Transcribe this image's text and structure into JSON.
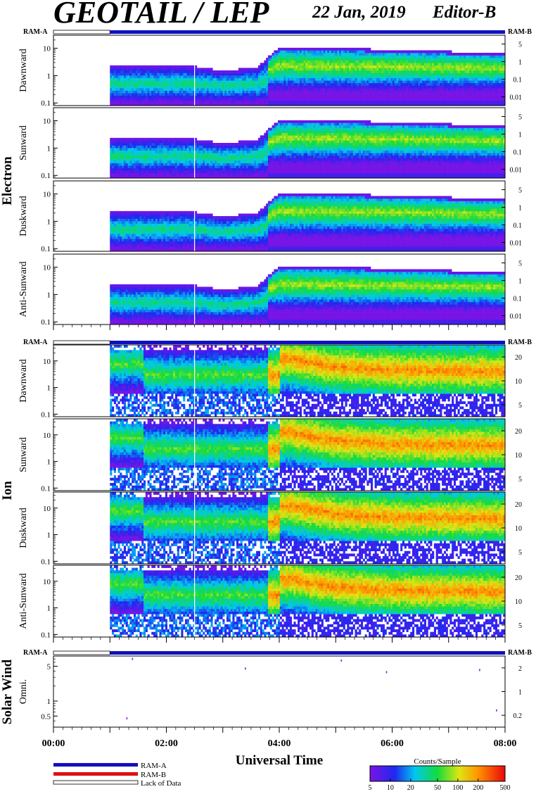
{
  "header": {
    "title": "GEOTAIL / LEP",
    "date": "22 Jan, 2019",
    "editor": "Editor-B"
  },
  "ram_labels": {
    "a": "RAM-A",
    "b": "RAM-B"
  },
  "group_labels": {
    "electron": "Electron",
    "ion": "Ion",
    "solar_wind": "Solar Wind"
  },
  "panel_labels": [
    "Dawnward",
    "Sunward",
    "Duskward",
    "Anti-Sunward",
    "Dawnward",
    "Sunward",
    "Duskward",
    "Anti-Sunward",
    "Omni."
  ],
  "x_axis": {
    "title": "Universal Time",
    "ticks": [
      "00:00",
      "02:00",
      "04:00",
      "06:00",
      "08:00"
    ]
  },
  "legend": {
    "ram_a": "RAM-A",
    "ram_b": "RAM-B",
    "lack": "Lack of Data"
  },
  "colorbar": {
    "title": "Counts/Sample",
    "ticks": [
      "5",
      "10",
      "20",
      "50",
      "100",
      "200",
      "500"
    ]
  },
  "left_tick_labels": {
    "electron": [
      "10",
      "1",
      "0.1"
    ],
    "ion": [
      "10",
      "1",
      "0.1"
    ],
    "solar_wind": [
      "5",
      "1",
      "0.5"
    ]
  },
  "right_tick_labels": {
    "electron": [
      "5",
      "1",
      "0.1",
      "0.01"
    ],
    "ion": [
      "20",
      "10",
      "5"
    ],
    "solar_wind": [
      "2",
      "1",
      "0.2"
    ]
  },
  "colors": {
    "ram_a": "#1010c0",
    "ram_b": "#dd1111",
    "axis": "#000000",
    "background": "#ffffff"
  },
  "chart_data": {
    "type": "heatmap",
    "x_range_hours": [
      0,
      8
    ],
    "data_start_hour": 1.0,
    "ram_b_start_hour": 1.0,
    "colorscale_range": [
      5,
      500
    ],
    "colorscale_log": true,
    "panels": [
      {
        "group": "electron",
        "label": "Dawnward",
        "y_range": [
          0.08,
          30
        ],
        "y_log": true,
        "y_ticks": [
          10,
          1,
          0.1
        ],
        "right_ticks": [
          5,
          1,
          0.1,
          0.01
        ],
        "upper_edge": [
          [
            1.0,
            2.2
          ],
          [
            2.5,
            2.2
          ],
          [
            3.0,
            1.5
          ],
          [
            3.6,
            2.0
          ],
          [
            4.0,
            11
          ],
          [
            5.0,
            10
          ],
          [
            6.0,
            9
          ],
          [
            8.0,
            6.5
          ]
        ]
      },
      {
        "group": "electron",
        "label": "Sunward",
        "y_range": [
          0.08,
          30
        ],
        "y_log": true,
        "y_ticks": [
          10,
          1,
          0.1
        ],
        "right_ticks": [
          5,
          1,
          0.1,
          0.01
        ],
        "upper_edge": [
          [
            1.0,
            2.2
          ],
          [
            2.5,
            2.2
          ],
          [
            3.0,
            1.5
          ],
          [
            3.6,
            2.0
          ],
          [
            4.0,
            11
          ],
          [
            5.0,
            10
          ],
          [
            6.0,
            9
          ],
          [
            8.0,
            6.5
          ]
        ]
      },
      {
        "group": "electron",
        "label": "Duskward",
        "y_range": [
          0.08,
          30
        ],
        "y_log": true,
        "y_ticks": [
          10,
          1,
          0.1
        ],
        "right_ticks": [
          5,
          1,
          0.1,
          0.01
        ],
        "upper_edge": [
          [
            1.0,
            2.2
          ],
          [
            2.5,
            2.2
          ],
          [
            3.0,
            1.5
          ],
          [
            3.6,
            2.0
          ],
          [
            4.0,
            11
          ],
          [
            5.0,
            10
          ],
          [
            6.0,
            9
          ],
          [
            8.0,
            6.5
          ]
        ]
      },
      {
        "group": "electron",
        "label": "Anti-Sunward",
        "y_range": [
          0.08,
          30
        ],
        "y_log": true,
        "y_ticks": [
          10,
          1,
          0.1
        ],
        "right_ticks": [
          5,
          1,
          0.1,
          0.01
        ],
        "upper_edge": [
          [
            1.0,
            2.2
          ],
          [
            2.5,
            2.2
          ],
          [
            3.0,
            1.5
          ],
          [
            3.6,
            2.0
          ],
          [
            4.0,
            11
          ],
          [
            5.0,
            10
          ],
          [
            6.0,
            9
          ],
          [
            8.0,
            6.5
          ]
        ]
      },
      {
        "group": "ion",
        "label": "Dawnward",
        "y_range": [
          0.08,
          40
        ],
        "y_log": true,
        "y_ticks": [
          10,
          1,
          0.1
        ],
        "right_ticks": [
          20,
          10,
          5
        ],
        "peak_band": [
          [
            4.2,
            12
          ],
          [
            5.0,
            6
          ],
          [
            6.0,
            4.5
          ],
          [
            8.0,
            4
          ]
        ]
      },
      {
        "group": "ion",
        "label": "Sunward",
        "y_range": [
          0.08,
          40
        ],
        "y_log": true,
        "y_ticks": [
          10,
          1,
          0.1
        ],
        "right_ticks": [
          20,
          10,
          5
        ],
        "peak_band": [
          [
            4.2,
            12
          ],
          [
            5.0,
            6
          ],
          [
            6.0,
            4.5
          ],
          [
            8.0,
            4
          ]
        ]
      },
      {
        "group": "ion",
        "label": "Duskward",
        "y_range": [
          0.08,
          40
        ],
        "y_log": true,
        "y_ticks": [
          10,
          1,
          0.1
        ],
        "right_ticks": [
          20,
          10,
          5
        ],
        "peak_band": [
          [
            4.2,
            12
          ],
          [
            5.0,
            6
          ],
          [
            6.0,
            4.5
          ],
          [
            8.0,
            4
          ]
        ]
      },
      {
        "group": "ion",
        "label": "Anti-Sunward",
        "y_range": [
          0.08,
          40
        ],
        "y_log": true,
        "y_ticks": [
          10,
          1,
          0.1
        ],
        "right_ticks": [
          20,
          10,
          5
        ],
        "peak_band": [
          [
            4.2,
            12
          ],
          [
            5.0,
            6
          ],
          [
            6.0,
            4.5
          ],
          [
            8.0,
            4
          ]
        ]
      },
      {
        "group": "solar_wind",
        "label": "Omni.",
        "y_range": [
          0.3,
          8
        ],
        "y_log": true,
        "y_ticks": [
          5,
          1,
          0.5
        ],
        "right_ticks": [
          2,
          1,
          0.2
        ],
        "sparse_points": [
          [
            1.4,
            7
          ],
          [
            1.3,
            0.45
          ],
          [
            3.4,
            4.5
          ],
          [
            5.1,
            6.5
          ],
          [
            5.9,
            3.8
          ],
          [
            7.55,
            4.2
          ],
          [
            7.85,
            0.65
          ]
        ]
      }
    ]
  }
}
